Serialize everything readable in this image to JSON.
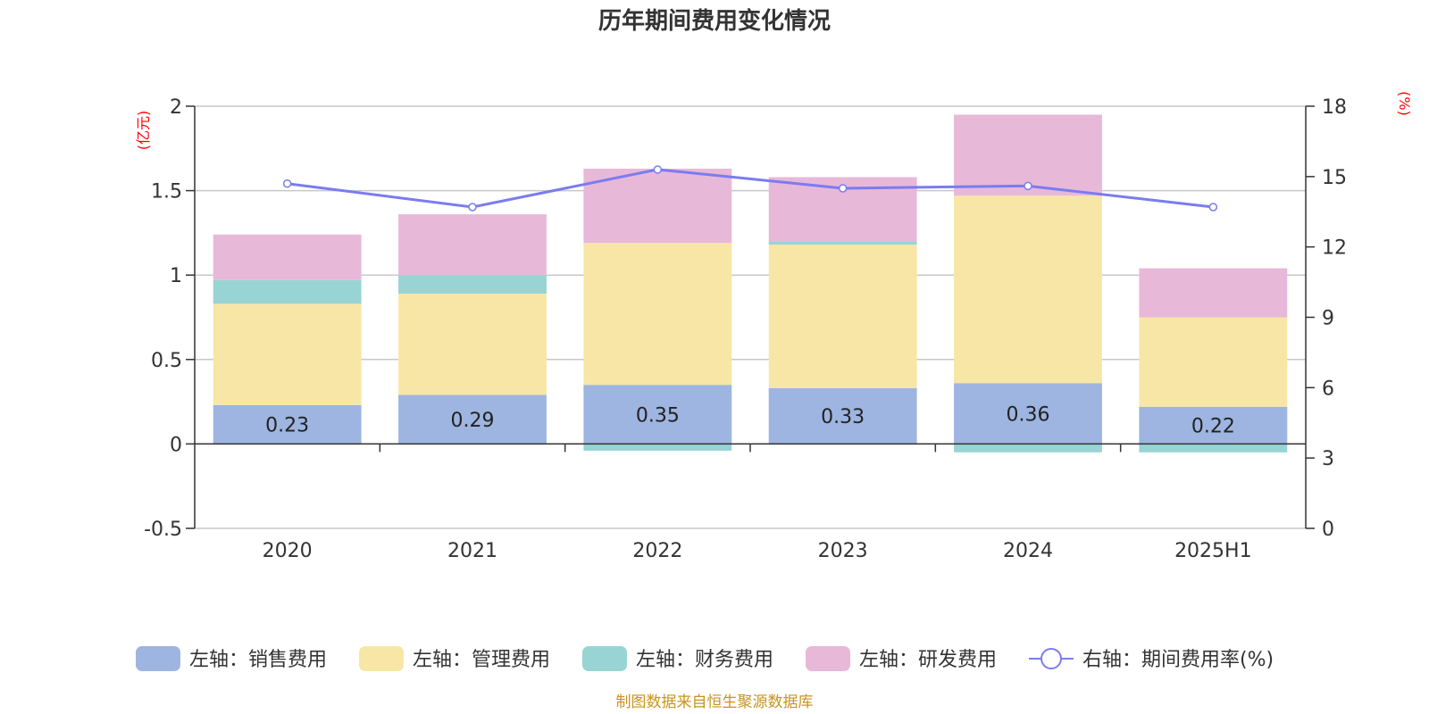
{
  "chart_data": {
    "type": "bar",
    "title": "历年期间费用变化情况",
    "left_axis": {
      "unit": "(亿元)",
      "ylim": [
        -0.5,
        2
      ],
      "ticks": [
        "-0.5",
        "0",
        "0.5",
        "1",
        "1.5",
        "2"
      ]
    },
    "right_axis": {
      "unit": "(%)",
      "ylim": [
        0,
        18
      ],
      "ticks": [
        "0",
        "3",
        "6",
        "9",
        "12",
        "15",
        "18"
      ]
    },
    "categories": [
      "2020",
      "2021",
      "2022",
      "2023",
      "2024",
      "2025H1"
    ],
    "stacked": true,
    "grid": true,
    "legend_position": "bottom",
    "series": [
      {
        "name": "左轴：销售费用",
        "axis": "left",
        "color": "#9db5e0",
        "values": [
          0.23,
          0.29,
          0.35,
          0.33,
          0.36,
          0.22
        ],
        "labels": [
          "0.23",
          "0.29",
          "0.35",
          "0.33",
          "0.36",
          "0.22"
        ]
      },
      {
        "name": "左轴：管理费用",
        "axis": "left",
        "color": "#f8e6a6",
        "values": [
          0.6,
          0.6,
          0.84,
          0.85,
          1.11,
          0.53
        ]
      },
      {
        "name": "左轴：财务费用",
        "axis": "left",
        "color": "#98d4d4",
        "values": [
          0.14,
          0.11,
          -0.04,
          0.02,
          -0.05,
          -0.05
        ]
      },
      {
        "name": "左轴：研发费用",
        "axis": "left",
        "color": "#e8b8d9",
        "values": [
          0.27,
          0.36,
          0.44,
          0.38,
          0.48,
          0.29
        ]
      },
      {
        "name": "右轴：期间费用率(%)",
        "axis": "right",
        "type": "line",
        "color": "#7a7cf0",
        "values": [
          14.7,
          13.7,
          15.3,
          14.5,
          14.6,
          13.7
        ]
      }
    ]
  },
  "footer": {
    "source": "制图数据来自恒生聚源数据库"
  }
}
